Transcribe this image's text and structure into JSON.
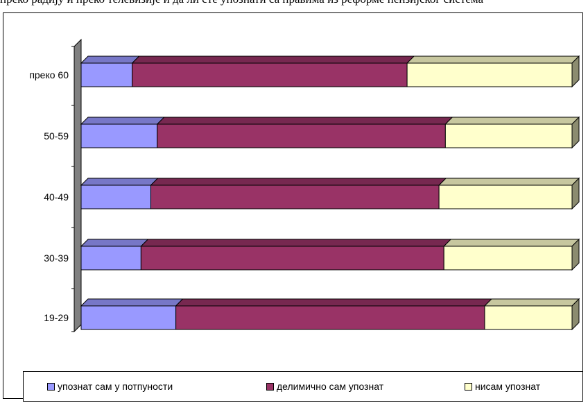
{
  "header": {
    "text": "преко радију и преко телевизије и да ли сте упознати са правима из реформе пензијског система"
  },
  "chart_data": {
    "type": "bar",
    "orientation": "horizontal",
    "stacked": "100%",
    "categories": [
      "19-29",
      "30-39",
      "40-49",
      "50-59",
      "преко 60"
    ],
    "series": [
      {
        "name": "упознат сам у потпуности",
        "color": "#9999ff",
        "values": [
          19.3,
          12.2,
          14.2,
          15.5,
          10.4
        ]
      },
      {
        "name": "делимично сам упознат",
        "color": "#993366",
        "values": [
          62.9,
          61.7,
          58.7,
          58.7,
          56.0
        ]
      },
      {
        "name": "нисам упознат",
        "color": "#ffffcc",
        "values": [
          17.8,
          26.1,
          27.1,
          25.8,
          33.6
        ]
      }
    ],
    "xlim": [
      0,
      100
    ],
    "legend_position": "bottom",
    "style": "3d"
  }
}
